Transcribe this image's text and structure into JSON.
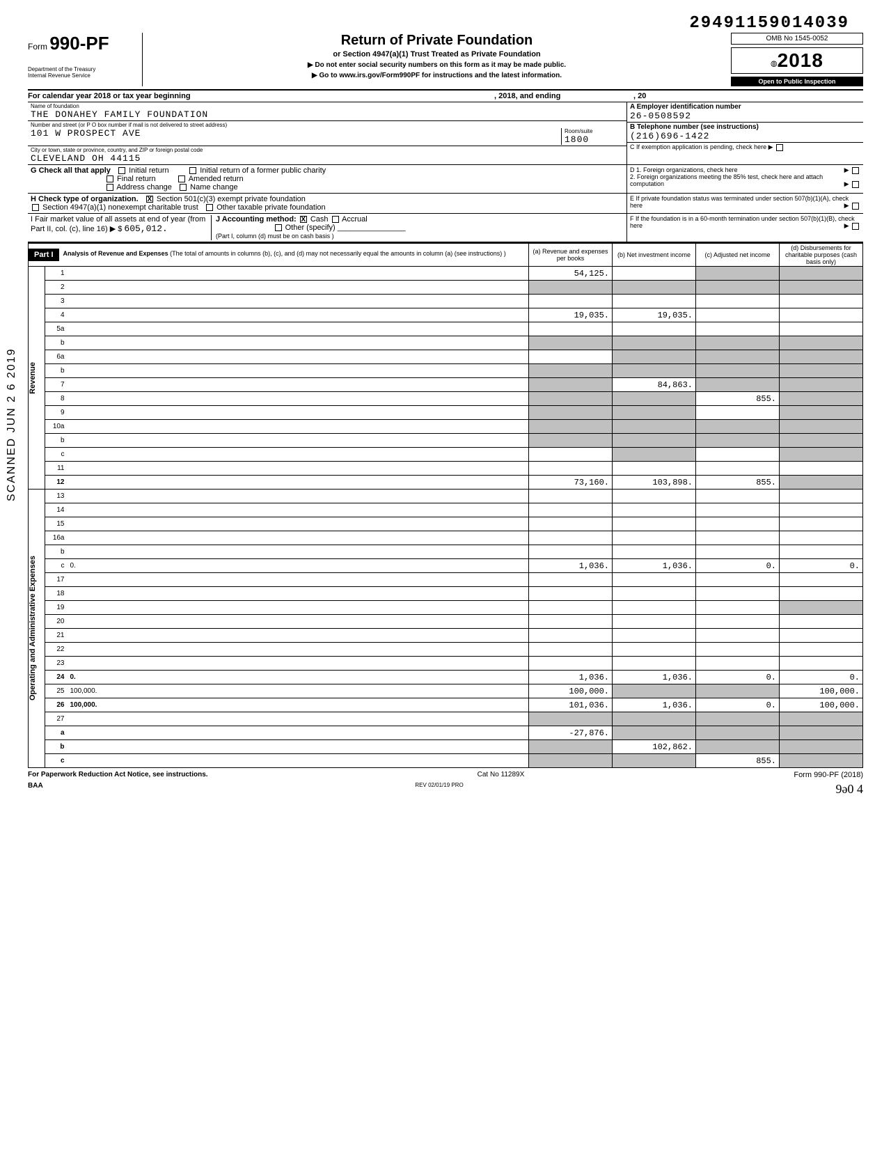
{
  "dln": "29491159014039",
  "form": {
    "prefix": "Form",
    "number": "990-PF",
    "dept1": "Department of the Treasury",
    "dept2": "Internal Revenue Service"
  },
  "title": "Return of Private Foundation",
  "subtitle": "or Section 4947(a)(1) Trust Treated as Private Foundation",
  "instr1": "▶ Do not enter social security numbers on this form as it may be made public.",
  "instr2": "▶ Go to www.irs.gov/Form990PF for instructions and the latest information.",
  "omb": "OMB No 1545-0052",
  "year_icon": "⦾",
  "year": "2018",
  "open_public": "Open to Public Inspection",
  "tax_year": {
    "begin": "For calendar year 2018 or tax year beginning",
    "mid": ", 2018, and ending",
    "end": ", 20"
  },
  "entity": {
    "name_label": "Name of foundation",
    "name": "THE DONAHEY FAMILY FOUNDATION",
    "addr_label": "Number and street (or P O box number if mail is not delivered to street address)",
    "addr": "101 W PROSPECT AVE",
    "room_label": "Room/suite",
    "room": "1800",
    "city_label": "City or town, state or province, country, and ZIP or foreign postal code",
    "city": "CLEVELAND OH 44115",
    "ein_label": "A  Employer identification number",
    "ein": "26-0508592",
    "phone_label": "B  Telephone number (see instructions)",
    "phone": "(216)696-1422",
    "c_label": "C  If exemption application is pending, check here ▶"
  },
  "boxG": {
    "label": "G  Check all that apply",
    "opts": [
      "Initial return",
      "Initial return of a former public charity",
      "Final return",
      "Amended return",
      "Address change",
      "Name change"
    ]
  },
  "boxD": {
    "l1": "D  1. Foreign organizations, check here",
    "l2": "2. Foreign organizations meeting the 85% test, check here and attach computation"
  },
  "boxH": {
    "label": "H  Check type of organization.",
    "opt1": "Section 501(c)(3) exempt private foundation",
    "opt2": "Section 4947(a)(1) nonexempt charitable trust",
    "opt3": "Other taxable private foundation"
  },
  "boxE": "E  If private foundation status was terminated under section 507(b)(1)(A), check here",
  "boxI": {
    "label": "I   Fair market value of all assets at end of year  (from Part II, col. (c), line 16) ▶ $",
    "value": "605,012."
  },
  "boxJ": {
    "label": "J  Accounting method:",
    "cash": "Cash",
    "accrual": "Accrual",
    "other": "Other (specify)",
    "note": "(Part I, column (d) must be on cash basis )"
  },
  "boxF": "F  If the foundation is in a 60-month termination under section 507(b)(1)(B), check here",
  "partI": {
    "label": "Part I",
    "title": "Analysis of Revenue and Expenses",
    "desc": "(The total of amounts in columns (b), (c), and (d) may not necessarily equal the amounts in column (a) (see instructions) )",
    "colA": "(a) Revenue and expenses per books",
    "colB": "(b) Net investment income",
    "colC": "(c) Adjusted net income",
    "colD": "(d) Disbursements for charitable purposes (cash basis only)"
  },
  "side_labels": {
    "revenue": "Revenue",
    "expenses": "Operating and Administrative Expenses"
  },
  "rows": [
    {
      "n": "1",
      "d": "",
      "a": "54,125.",
      "b": "",
      "c": "",
      "cs": true,
      "ds": true
    },
    {
      "n": "2",
      "d": "",
      "a": "",
      "b": "",
      "c": "",
      "as": true,
      "bs": true,
      "cs": true,
      "ds": true
    },
    {
      "n": "3",
      "d": "",
      "a": "",
      "b": "",
      "c": ""
    },
    {
      "n": "4",
      "d": "",
      "a": "19,035.",
      "b": "19,035.",
      "c": ""
    },
    {
      "n": "5a",
      "d": "",
      "a": "",
      "b": "",
      "c": ""
    },
    {
      "n": "b",
      "d": "",
      "a": "",
      "b": "",
      "c": "",
      "as": true,
      "bs": true,
      "cs": true,
      "ds": true
    },
    {
      "n": "6a",
      "d": "",
      "a": "",
      "b": "",
      "c": "",
      "bs": true,
      "cs": true,
      "ds": true
    },
    {
      "n": "b",
      "d": "",
      "a": "",
      "b": "",
      "c": "",
      "as": true,
      "bs": true,
      "cs": true,
      "ds": true
    },
    {
      "n": "7",
      "d": "",
      "a": "",
      "b": "84,863.",
      "c": "",
      "as": true,
      "cs": true,
      "ds": true
    },
    {
      "n": "8",
      "d": "",
      "a": "",
      "b": "",
      "c": "855.",
      "as": true,
      "bs": true,
      "ds": true
    },
    {
      "n": "9",
      "d": "",
      "a": "",
      "b": "",
      "c": "",
      "as": true,
      "bs": true,
      "ds": true
    },
    {
      "n": "10a",
      "d": "",
      "a": "",
      "b": "",
      "c": "",
      "as": true,
      "bs": true,
      "cs": true,
      "ds": true
    },
    {
      "n": "b",
      "d": "",
      "a": "",
      "b": "",
      "c": "",
      "as": true,
      "bs": true,
      "cs": true,
      "ds": true
    },
    {
      "n": "c",
      "d": "",
      "a": "",
      "b": "",
      "c": "",
      "bs": true,
      "ds": true
    },
    {
      "n": "11",
      "d": "",
      "a": "",
      "b": "",
      "c": ""
    },
    {
      "n": "12",
      "d": "",
      "a": "73,160.",
      "b": "103,898.",
      "c": "855.",
      "bold": true,
      "ds": true
    },
    {
      "n": "13",
      "d": "",
      "a": "",
      "b": "",
      "c": ""
    },
    {
      "n": "14",
      "d": "",
      "a": "",
      "b": "",
      "c": ""
    },
    {
      "n": "15",
      "d": "",
      "a": "",
      "b": "",
      "c": ""
    },
    {
      "n": "16a",
      "d": "",
      "a": "",
      "b": "",
      "c": ""
    },
    {
      "n": "b",
      "d": "",
      "a": "",
      "b": "",
      "c": ""
    },
    {
      "n": "c",
      "d": "0.",
      "a": "1,036.",
      "b": "1,036.",
      "c": "0."
    },
    {
      "n": "17",
      "d": "",
      "a": "",
      "b": "",
      "c": ""
    },
    {
      "n": "18",
      "d": "",
      "a": "",
      "b": "",
      "c": ""
    },
    {
      "n": "19",
      "d": "",
      "a": "",
      "b": "",
      "c": "",
      "ds": true
    },
    {
      "n": "20",
      "d": "",
      "a": "",
      "b": "",
      "c": ""
    },
    {
      "n": "21",
      "d": "",
      "a": "",
      "b": "",
      "c": ""
    },
    {
      "n": "22",
      "d": "",
      "a": "",
      "b": "",
      "c": ""
    },
    {
      "n": "23",
      "d": "",
      "a": "",
      "b": "",
      "c": ""
    },
    {
      "n": "24",
      "d": "0.",
      "a": "1,036.",
      "b": "1,036.",
      "c": "0.",
      "bold": true
    },
    {
      "n": "25",
      "d": "100,000.",
      "a": "100,000.",
      "b": "",
      "c": "",
      "bs": true,
      "cs": true
    },
    {
      "n": "26",
      "d": "100,000.",
      "a": "101,036.",
      "b": "1,036.",
      "c": "0.",
      "bold": true
    },
    {
      "n": "27",
      "d": "",
      "a": "",
      "b": "",
      "c": "",
      "as": true,
      "bs": true,
      "cs": true,
      "ds": true
    },
    {
      "n": "a",
      "d": "",
      "a": "-27,876.",
      "b": "",
      "c": "",
      "bold": true,
      "bs": true,
      "cs": true,
      "ds": true
    },
    {
      "n": "b",
      "d": "",
      "a": "",
      "b": "102,862.",
      "c": "",
      "bold": true,
      "as": true,
      "cs": true,
      "ds": true
    },
    {
      "n": "c",
      "d": "",
      "a": "",
      "b": "",
      "c": "855.",
      "bold": true,
      "as": true,
      "bs": true,
      "ds": true
    }
  ],
  "footer": {
    "paperwork": "For Paperwork Reduction Act Notice, see instructions.",
    "baa": "BAA",
    "cat": "Cat No 11289X",
    "rev": "REV 02/01/19 PRO",
    "form": "Form 990-PF (2018)",
    "hand": "9ə0  4"
  },
  "side_stamp": "SCANNED JUN 2 6 2019"
}
